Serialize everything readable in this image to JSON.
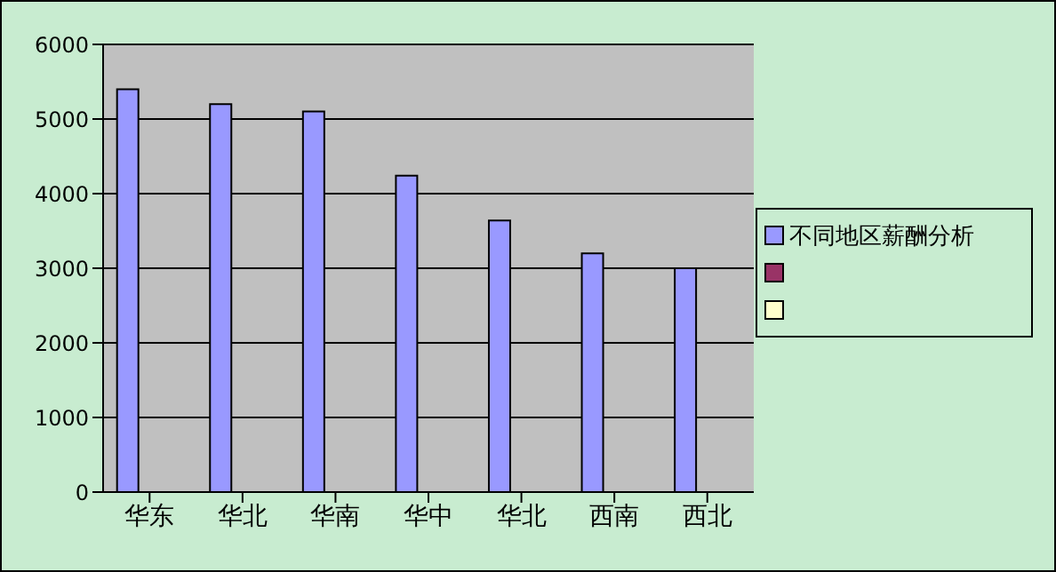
{
  "chart_data": {
    "type": "bar",
    "categories": [
      "华东",
      "华北",
      "华南",
      "华中",
      "华北",
      "西南",
      "西北"
    ],
    "series": [
      {
        "name": "不同地区薪酬分析",
        "color": "#9999ff",
        "values": [
          5400,
          5200,
          5100,
          4240,
          3640,
          3200,
          3000
        ]
      },
      {
        "color": "#993366",
        "values": [
          null,
          null,
          null,
          null,
          null,
          null,
          null
        ]
      },
      {
        "color": "#ffffcc",
        "values": [
          null,
          null,
          null,
          null,
          null,
          null,
          null
        ]
      }
    ],
    "ylim": [
      0,
      6000
    ],
    "yticks": [
      0,
      1000,
      2000,
      3000,
      4000,
      5000,
      6000
    ],
    "grid": "y",
    "legend": "right"
  }
}
